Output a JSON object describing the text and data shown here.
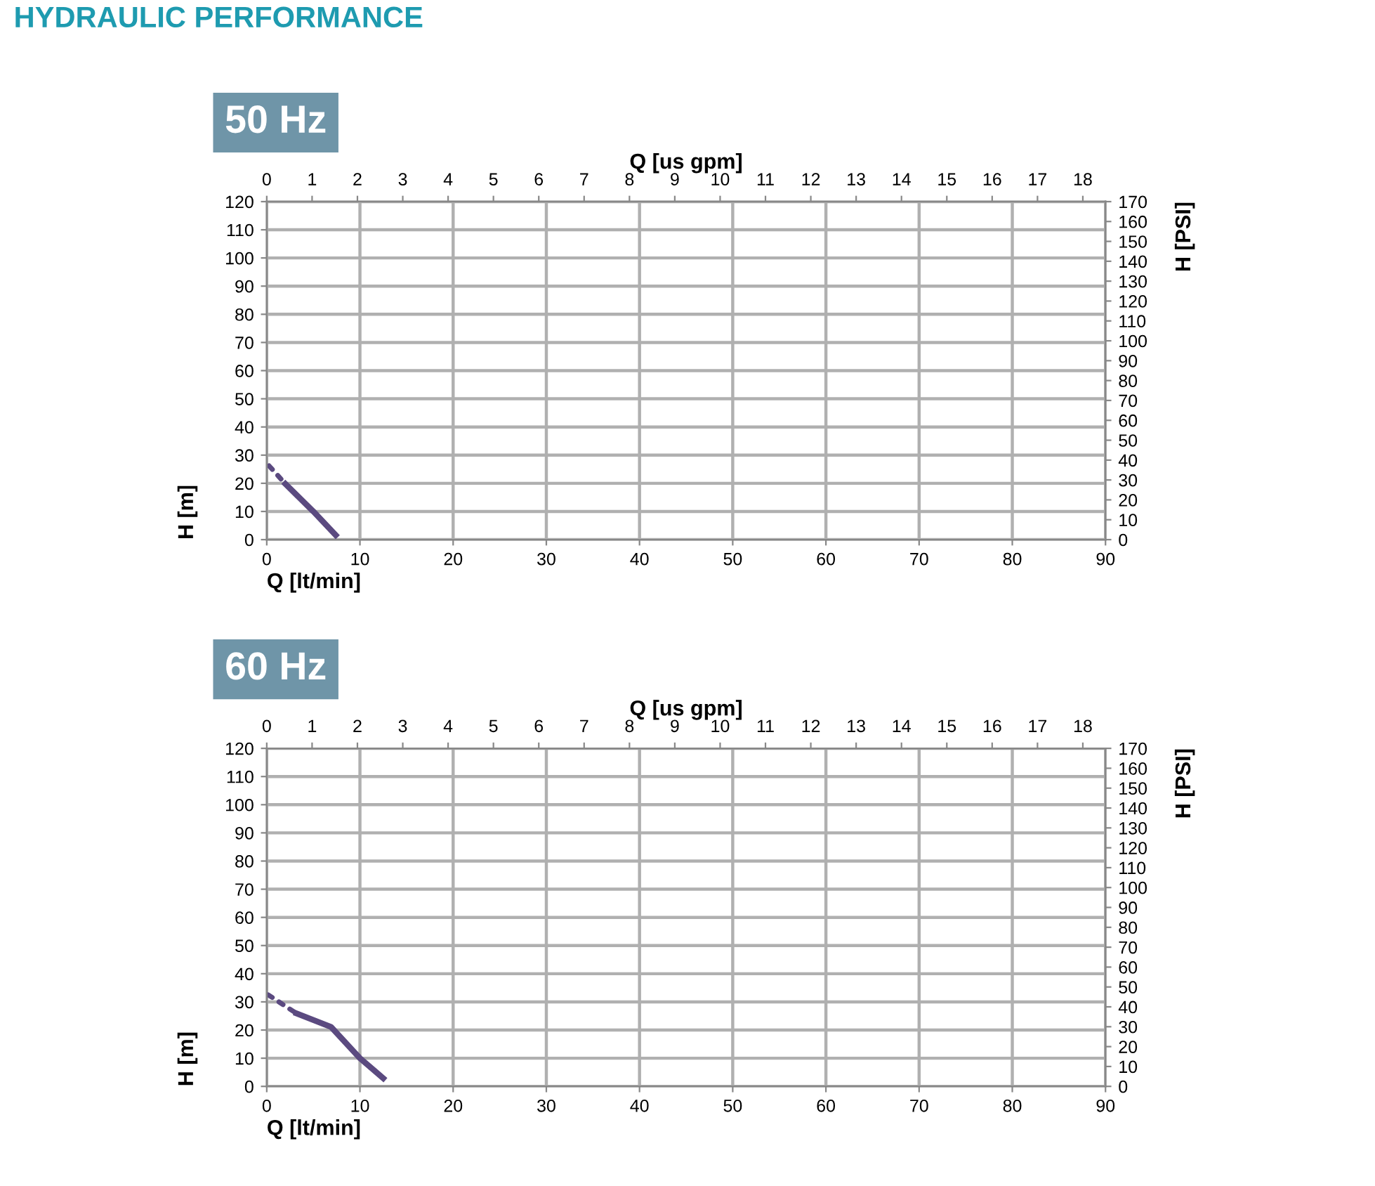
{
  "chart_data": [
    {
      "type": "line",
      "title": "50 Hz",
      "annotations": [
        "HYDRAULIC PERFORMANCE"
      ],
      "xlabel": "Q [lt/min]",
      "ylabel": "H [m]",
      "x2label": "Q [us gpm]",
      "y2label": "H [PSI]",
      "xlim": [
        0,
        90
      ],
      "xticks": [
        0,
        10,
        20,
        30,
        40,
        50,
        60,
        70,
        80,
        90
      ],
      "ylim": [
        0,
        120
      ],
      "yticks": [
        0,
        10,
        20,
        30,
        40,
        50,
        60,
        70,
        80,
        90,
        100,
        110,
        120
      ],
      "x2lim": [
        0,
        18.5
      ],
      "x2ticks": [
        0,
        1,
        2,
        3,
        4,
        5,
        6,
        7,
        8,
        9,
        10,
        11,
        12,
        13,
        14,
        15,
        16,
        17,
        18
      ],
      "y2lim": [
        0,
        170
      ],
      "y2ticks": [
        0,
        10,
        20,
        30,
        40,
        50,
        60,
        70,
        80,
        90,
        100,
        110,
        120,
        130,
        140,
        150,
        160,
        170
      ],
      "grid": true,
      "legend": false,
      "series": [
        {
          "color": "#5b4a80",
          "line_style": "dotted",
          "x": [
            0.25,
            2.0
          ],
          "values": [
            26.2,
            19.8
          ]
        },
        {
          "color": "#5b4a80",
          "line_style": "solid",
          "x": [
            2.0,
            5.0,
            7.4
          ],
          "values": [
            19.8,
            10,
            1.6
          ]
        }
      ]
    },
    {
      "type": "line",
      "title": "60 Hz",
      "xlabel": "Q [lt/min]",
      "ylabel": "H [m]",
      "x2label": "Q [us gpm]",
      "y2label": "H [PSI]",
      "xlim": [
        0,
        90
      ],
      "xticks": [
        0,
        10,
        20,
        30,
        40,
        50,
        60,
        70,
        80,
        90
      ],
      "ylim": [
        0,
        120
      ],
      "yticks": [
        0,
        10,
        20,
        30,
        40,
        50,
        60,
        70,
        80,
        90,
        100,
        110,
        120
      ],
      "x2lim": [
        0,
        18.5
      ],
      "x2ticks": [
        0,
        1,
        2,
        3,
        4,
        5,
        6,
        7,
        8,
        9,
        10,
        11,
        12,
        13,
        14,
        15,
        16,
        17,
        18
      ],
      "y2lim": [
        0,
        170
      ],
      "y2ticks": [
        0,
        10,
        20,
        30,
        40,
        50,
        60,
        70,
        80,
        90,
        100,
        110,
        120,
        130,
        140,
        150,
        160,
        170
      ],
      "grid": true,
      "legend": false,
      "series": [
        {
          "color": "#5b4a80",
          "line_style": "dotted",
          "x": [
            0.15,
            3.2
          ],
          "values": [
            32.5,
            25.9
          ]
        },
        {
          "color": "#5b4a80",
          "line_style": "solid",
          "x": [
            3.2,
            6.9,
            10,
            12.5
          ],
          "values": [
            25.9,
            21.1,
            10,
            2.9
          ]
        }
      ]
    }
  ]
}
